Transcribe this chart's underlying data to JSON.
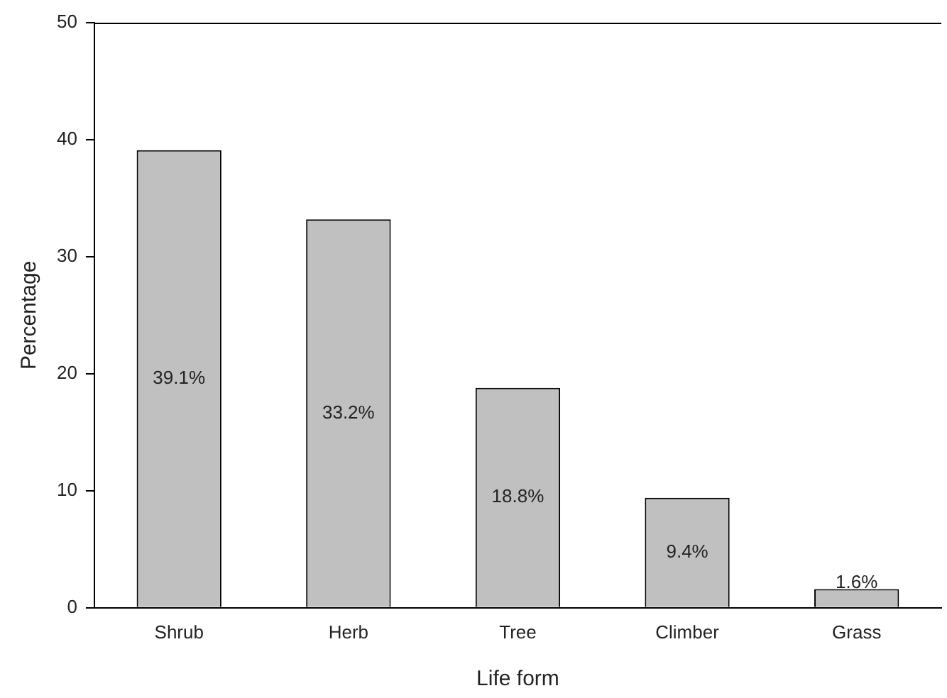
{
  "chart_data": {
    "type": "bar",
    "xlabel": "Life form",
    "ylabel": "Percentage",
    "categories": [
      "Shrub",
      "Herb",
      "Tree",
      "Climber",
      "Grass"
    ],
    "values": [
      39.1,
      33.2,
      18.8,
      9.4,
      1.6
    ],
    "value_labels": [
      "39.1%",
      "33.2%",
      "18.8%",
      "9.4%",
      "1.6%"
    ],
    "color": "#c0c0c0",
    "ylim": [
      0,
      50
    ],
    "yticks": [
      0,
      10,
      20,
      30,
      40,
      50
    ],
    "grid": false,
    "legend": false
  }
}
